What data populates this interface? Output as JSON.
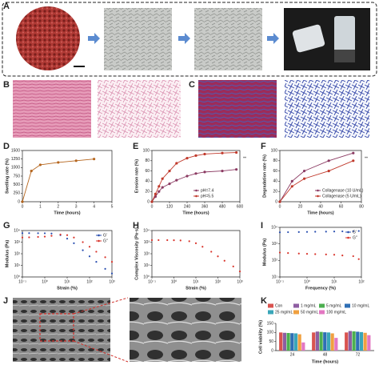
{
  "panel_labels": [
    "A",
    "B",
    "C",
    "D",
    "E",
    "F",
    "G",
    "H",
    "I",
    "J",
    "K"
  ],
  "chart_data": [
    {
      "type": "line",
      "xlabel": "Time (hours)",
      "ylabel": "Swelling rate (%)",
      "x": [
        0,
        0.5,
        1,
        2,
        3,
        4
      ],
      "xlim": [
        0,
        5
      ],
      "xticks": [
        0,
        1,
        2,
        3,
        4,
        5
      ],
      "ylim": [
        0,
        1500
      ],
      "yticks": [
        0,
        250,
        500,
        750,
        1000,
        1250,
        1500
      ],
      "series": [
        {
          "name": "Swelling",
          "color": "#b5651d",
          "values": [
            0,
            900,
            1080,
            1150,
            1200,
            1250
          ]
        }
      ],
      "legend": "none"
    },
    {
      "type": "line",
      "xlabel": "Time (hours)",
      "ylabel": "Erosion rate (%)",
      "x": [
        0,
        24,
        48,
        72,
        120,
        168,
        240,
        300,
        360,
        480,
        576
      ],
      "xlim": [
        0,
        600
      ],
      "xticks": [
        0,
        120,
        240,
        360,
        480,
        600
      ],
      "ylim": [
        0,
        100
      ],
      "yticks": [
        0,
        20,
        40,
        60,
        80,
        100
      ],
      "series": [
        {
          "name": "pH=7.4",
          "color": "#8b3a62",
          "values": [
            0,
            10,
            20,
            28,
            35,
            42,
            50,
            55,
            58,
            60,
            63
          ]
        },
        {
          "name": "pH=5.5",
          "color": "#c0392b",
          "values": [
            0,
            15,
            30,
            45,
            60,
            75,
            85,
            90,
            93,
            95,
            96
          ]
        }
      ],
      "legend": "lower right",
      "annotation": "**"
    },
    {
      "type": "line",
      "xlabel": "Time (hours)",
      "ylabel": "Degradation rate (%)",
      "x": [
        0,
        12,
        24,
        48,
        72
      ],
      "xlim": [
        0,
        80
      ],
      "xticks": [
        0,
        20,
        40,
        60,
        80
      ],
      "ylim": [
        0,
        100
      ],
      "yticks": [
        0,
        20,
        40,
        60,
        80,
        100
      ],
      "series": [
        {
          "name": "Collagenase (10 U/mL)",
          "color": "#8b3a62",
          "values": [
            0,
            40,
            60,
            80,
            95
          ]
        },
        {
          "name": "Collagenase (5 U/mL)",
          "color": "#c0392b",
          "values": [
            0,
            30,
            45,
            60,
            80
          ]
        }
      ],
      "legend": "lower right",
      "annotation": "**"
    },
    {
      "type": "scatter",
      "xlabel": "Strain (%)",
      "ylabel": "Modulus (Pa)",
      "xlog": true,
      "ylog": true,
      "x": [
        0.1,
        0.2,
        0.5,
        1,
        2,
        5,
        10,
        20,
        50,
        100,
        200,
        500,
        1000
      ],
      "xlim": [
        0.1,
        1000
      ],
      "xticks": [
        {
          "value": 0.1,
          "label": "10⁻¹"
        },
        {
          "value": 1,
          "label": "10⁰"
        },
        {
          "value": 10,
          "label": "10¹"
        },
        {
          "value": 100,
          "label": "10²"
        },
        {
          "value": 1000,
          "label": "10³"
        }
      ],
      "ylim": [
        1,
        10000
      ],
      "yticks": [
        {
          "value": 1,
          "label": "10⁰"
        },
        {
          "value": 10,
          "label": "10¹"
        },
        {
          "value": 100,
          "label": "10²"
        },
        {
          "value": 1000,
          "label": "10³"
        },
        {
          "value": 10000,
          "label": "10⁴"
        }
      ],
      "series": [
        {
          "name": "G'",
          "color": "#2a4fb0",
          "values": [
            6000,
            6000,
            5900,
            5800,
            5500,
            4000,
            2000,
            800,
            200,
            60,
            20,
            5,
            2
          ]
        },
        {
          "name": "G''",
          "color": "#d9342b",
          "values": [
            2500,
            2600,
            2800,
            3000,
            3500,
            4500,
            4000,
            2500,
            1000,
            400,
            150,
            50,
            20
          ]
        }
      ],
      "legend": "upper right"
    },
    {
      "type": "scatter",
      "xlabel": "Strain (%)",
      "ylabel": "Complex Viscosity (Pa·s)",
      "xlog": true,
      "ylog": true,
      "x": [
        0.1,
        0.2,
        0.5,
        1,
        2,
        5,
        10,
        20,
        50,
        100,
        200,
        500,
        1000
      ],
      "xlim": [
        0.1,
        1000
      ],
      "xticks": [
        {
          "value": 0.1,
          "label": "10⁻¹"
        },
        {
          "value": 1,
          "label": "10⁰"
        },
        {
          "value": 10,
          "label": "10¹"
        },
        {
          "value": 100,
          "label": "10²"
        },
        {
          "value": 1000,
          "label": "10³"
        }
      ],
      "ylim": [
        1,
        10000
      ],
      "yticks": [
        {
          "value": 1,
          "label": "10⁰"
        },
        {
          "value": 10,
          "label": "10¹"
        },
        {
          "value": 100,
          "label": "10²"
        },
        {
          "value": 1000,
          "label": "10³"
        },
        {
          "value": 10000,
          "label": "10⁴"
        }
      ],
      "series": [
        {
          "name": "η*",
          "color": "#d9342b",
          "values": [
            1500,
            1500,
            1480,
            1450,
            1400,
            1200,
            800,
            400,
            150,
            60,
            25,
            8,
            3
          ]
        }
      ],
      "legend": "none"
    },
    {
      "type": "scatter",
      "xlabel": "Frequency (%)",
      "ylabel": "Modulus (Pa)",
      "xlog": true,
      "ylog": true,
      "x": [
        0.1,
        0.2,
        0.5,
        1,
        2,
        5,
        10,
        20,
        50,
        80
      ],
      "xlim": [
        0.1,
        100
      ],
      "xticks": [
        {
          "value": 0.1,
          "label": "10⁻¹"
        },
        {
          "value": 1,
          "label": "10⁰"
        },
        {
          "value": 10,
          "label": "10¹"
        },
        {
          "value": 100,
          "label": "10²"
        }
      ],
      "ylim": [
        10,
        10000
      ],
      "yticks": [
        {
          "value": 10,
          "label": "10¹"
        },
        {
          "value": 100,
          "label": "10²"
        },
        {
          "value": 1000,
          "label": "10³"
        },
        {
          "value": 10000,
          "label": "10⁴"
        }
      ],
      "series": [
        {
          "name": "G'",
          "color": "#2a4fb0",
          "values": [
            5000,
            5100,
            5200,
            5300,
            5400,
            5500,
            5600,
            5700,
            5800,
            6000
          ]
        },
        {
          "name": "G''",
          "color": "#d9342b",
          "values": [
            300,
            280,
            260,
            250,
            240,
            230,
            220,
            200,
            180,
            120
          ]
        }
      ],
      "legend": "upper right"
    },
    {
      "type": "bar",
      "xlabel": "Time (hours)",
      "ylabel": "Cell viability (%)",
      "categories": [
        "24",
        "48",
        "72"
      ],
      "ylim": [
        0,
        150
      ],
      "yticks": [
        0,
        50,
        100,
        150
      ],
      "series": [
        {
          "name": "Con",
          "color": "#d9534f",
          "values": [
            100,
            100,
            100
          ]
        },
        {
          "name": "1 mg/mL",
          "color": "#8e5ea2",
          "values": [
            98,
            105,
            108
          ]
        },
        {
          "name": "5 mg/mL",
          "color": "#4caf50",
          "values": [
            97,
            103,
            106
          ]
        },
        {
          "name": "10 mg/mL",
          "color": "#2f6fb5",
          "values": [
            96,
            101,
            104
          ]
        },
        {
          "name": "25 mg/mL",
          "color": "#3aa6b9",
          "values": [
            95,
            100,
            102
          ]
        },
        {
          "name": "50 mg/mL",
          "color": "#f0a040",
          "values": [
            90,
            95,
            98
          ]
        },
        {
          "name": "100 mg/mL",
          "color": "#e377c2",
          "values": [
            45,
            70,
            85
          ]
        }
      ],
      "legend": "top"
    }
  ]
}
